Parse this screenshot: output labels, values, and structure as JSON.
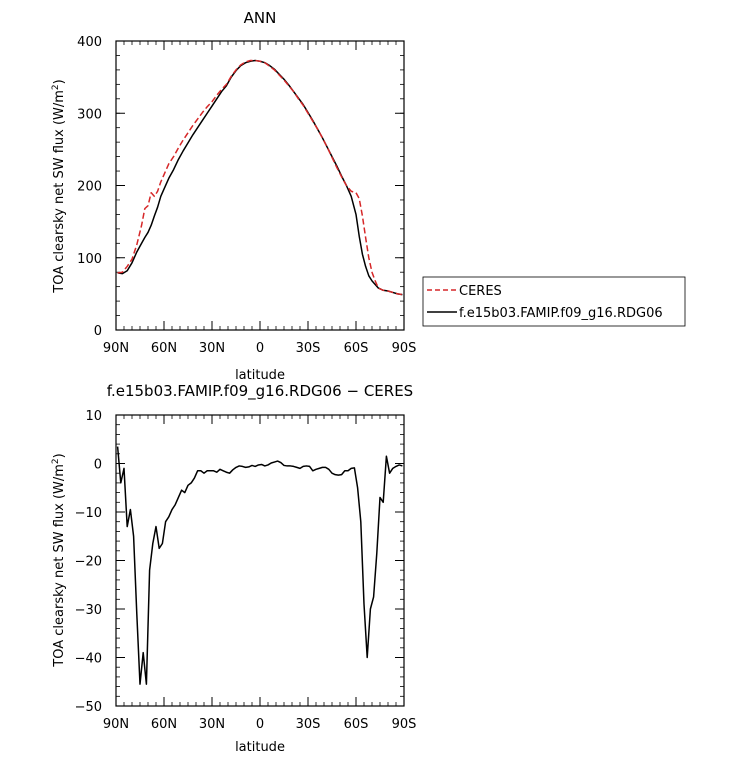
{
  "chart_data": [
    {
      "type": "line",
      "title": "ANN",
      "xlabel": "latitude",
      "ylabel": "TOA clearsky net SW flux (W/m",
      "ylabel_sup": "2",
      "ylabel_close": ")",
      "xlim": [
        90,
        -90
      ],
      "ylim": [
        0,
        400
      ],
      "x_ticks": [
        90,
        60,
        30,
        0,
        -30,
        -60,
        -90
      ],
      "x_tick_labels": [
        "90N",
        "60N",
        "30N",
        "0",
        "30S",
        "60S",
        "90S"
      ],
      "y_ticks": [
        0,
        100,
        200,
        300,
        400
      ],
      "y_tick_labels": [
        "0",
        "100",
        "200",
        "300",
        "400"
      ],
      "legend_position": "right",
      "series": [
        {
          "name": "CERES",
          "color": "#d62728",
          "dash": "dashed",
          "x": [
            89,
            86,
            83,
            80,
            77,
            74,
            72,
            70,
            68,
            66,
            64,
            62,
            60,
            57,
            54,
            51,
            48,
            45,
            42,
            39,
            36,
            33,
            30,
            27,
            24,
            21,
            18,
            15,
            12,
            9,
            6,
            3,
            0,
            -3,
            -6,
            -9,
            -12,
            -15,
            -18,
            -21,
            -24,
            -27,
            -30,
            -33,
            -36,
            -39,
            -42,
            -45,
            -48,
            -51,
            -54,
            -57,
            -60,
            -62,
            -64,
            -66,
            -68,
            -70,
            -72,
            -74,
            -77,
            -80,
            -83,
            -86,
            -89
          ],
          "values": [
            79,
            80,
            88,
            98,
            118,
            145,
            168,
            172,
            190,
            185,
            192,
            205,
            215,
            230,
            240,
            252,
            263,
            273,
            283,
            292,
            301,
            309,
            316,
            325,
            333,
            340,
            351,
            360,
            367,
            371,
            373,
            373,
            372,
            370,
            365,
            360,
            353,
            346,
            338,
            330,
            320,
            311,
            300,
            289,
            278,
            266,
            253,
            239,
            225,
            212,
            200,
            192,
            190,
            182,
            158,
            128,
            100,
            80,
            68,
            58,
            55,
            54,
            52,
            50,
            49
          ]
        },
        {
          "name": "f.e15b03.FAMIP.f09_g16.RDG06",
          "color": "#000000",
          "dash": "solid",
          "x": [
            89,
            86,
            83,
            80,
            77,
            74,
            72,
            70,
            68,
            66,
            64,
            62,
            60,
            57,
            54,
            51,
            48,
            45,
            42,
            39,
            36,
            33,
            30,
            27,
            24,
            21,
            18,
            15,
            12,
            9,
            6,
            3,
            0,
            -3,
            -6,
            -9,
            -12,
            -15,
            -18,
            -21,
            -24,
            -27,
            -30,
            -33,
            -36,
            -39,
            -42,
            -45,
            -48,
            -51,
            -54,
            -57,
            -60,
            -62,
            -64,
            -66,
            -68,
            -70,
            -72,
            -74,
            -77,
            -80,
            -83,
            -86,
            -89
          ],
          "values": [
            79,
            78,
            82,
            93,
            108,
            120,
            128,
            135,
            145,
            158,
            170,
            185,
            195,
            210,
            222,
            236,
            248,
            259,
            270,
            280,
            290,
            300,
            310,
            320,
            330,
            338,
            350,
            359,
            366,
            370,
            372,
            373,
            372,
            370,
            366,
            361,
            354,
            347,
            339,
            330,
            321,
            312,
            301,
            290,
            278,
            266,
            253,
            240,
            227,
            213,
            200,
            185,
            160,
            130,
            105,
            88,
            75,
            68,
            63,
            58,
            55,
            54,
            52,
            50,
            49
          ]
        }
      ]
    },
    {
      "type": "line",
      "title": "f.e15b03.FAMIP.f09_g16.RDG06 − CERES",
      "xlabel": "latitude",
      "ylabel": "TOA clearsky net SW flux (W/m",
      "ylabel_sup": "2",
      "ylabel_close": ")",
      "xlim": [
        90,
        -90
      ],
      "ylim": [
        -50,
        10
      ],
      "x_ticks": [
        90,
        60,
        30,
        0,
        -30,
        -60,
        -90
      ],
      "x_tick_labels": [
        "90N",
        "60N",
        "30N",
        "0",
        "30S",
        "60S",
        "90S"
      ],
      "y_ticks": [
        10,
        0,
        -10,
        -20,
        -30,
        -40,
        -50
      ],
      "y_tick_labels": [
        "10",
        "0",
        "−10",
        "−20",
        "−30",
        "−40",
        "−50"
      ],
      "series": [
        {
          "color": "#000000",
          "dash": "solid",
          "x": [
            89,
            87,
            85,
            83,
            81,
            79,
            77,
            75,
            73,
            71,
            69,
            67,
            65,
            63,
            61,
            59,
            57,
            55,
            53,
            51,
            49,
            47,
            45,
            43,
            41,
            39,
            37,
            35,
            33,
            31,
            29,
            27,
            25,
            23,
            21,
            19,
            17,
            15,
            13,
            11,
            9,
            7,
            5,
            3,
            1,
            -1,
            -3,
            -5,
            -7,
            -9,
            -11,
            -13,
            -15,
            -17,
            -19,
            -21,
            -23,
            -25,
            -27,
            -29,
            -31,
            -33,
            -35,
            -37,
            -39,
            -41,
            -43,
            -45,
            -47,
            -49,
            -51,
            -53,
            -55,
            -57,
            -59,
            -61,
            -63,
            -65,
            -67,
            -69,
            -71,
            -73,
            -75,
            -77,
            -79,
            -81,
            -83,
            -85,
            -87,
            -89
          ],
          "values": [
            3.5,
            -4,
            -1,
            -13,
            -9.5,
            -15,
            -31,
            -45.5,
            -39,
            -45.5,
            -22,
            -16.5,
            -13,
            -17.5,
            -16.5,
            -12,
            -11,
            -9.5,
            -8.5,
            -7,
            -5.5,
            -6,
            -4.5,
            -4,
            -3,
            -1.5,
            -1.5,
            -2,
            -1.5,
            -1.5,
            -1.5,
            -1.8,
            -1.2,
            -1.5,
            -1.8,
            -2,
            -1.3,
            -0.8,
            -0.5,
            -0.6,
            -0.8,
            -0.7,
            -0.4,
            -0.6,
            -0.3,
            -0.2,
            -0.5,
            -0.3,
            0.1,
            0.3,
            0.5,
            0.2,
            -0.4,
            -0.5,
            -0.5,
            -0.6,
            -0.8,
            -1.0,
            -0.6,
            -0.5,
            -0.6,
            -1.5,
            -1.2,
            -1.0,
            -0.8,
            -0.8,
            -1.2,
            -2,
            -2.3,
            -2.4,
            -2.3,
            -1.5,
            -1.5,
            -1.0,
            -0.9,
            -5,
            -12,
            -29,
            -40,
            -30,
            -27.5,
            -18.5,
            -7,
            -8,
            1.5,
            -2,
            -1,
            -0.6,
            -0.3,
            -0.5
          ]
        }
      ]
    }
  ]
}
